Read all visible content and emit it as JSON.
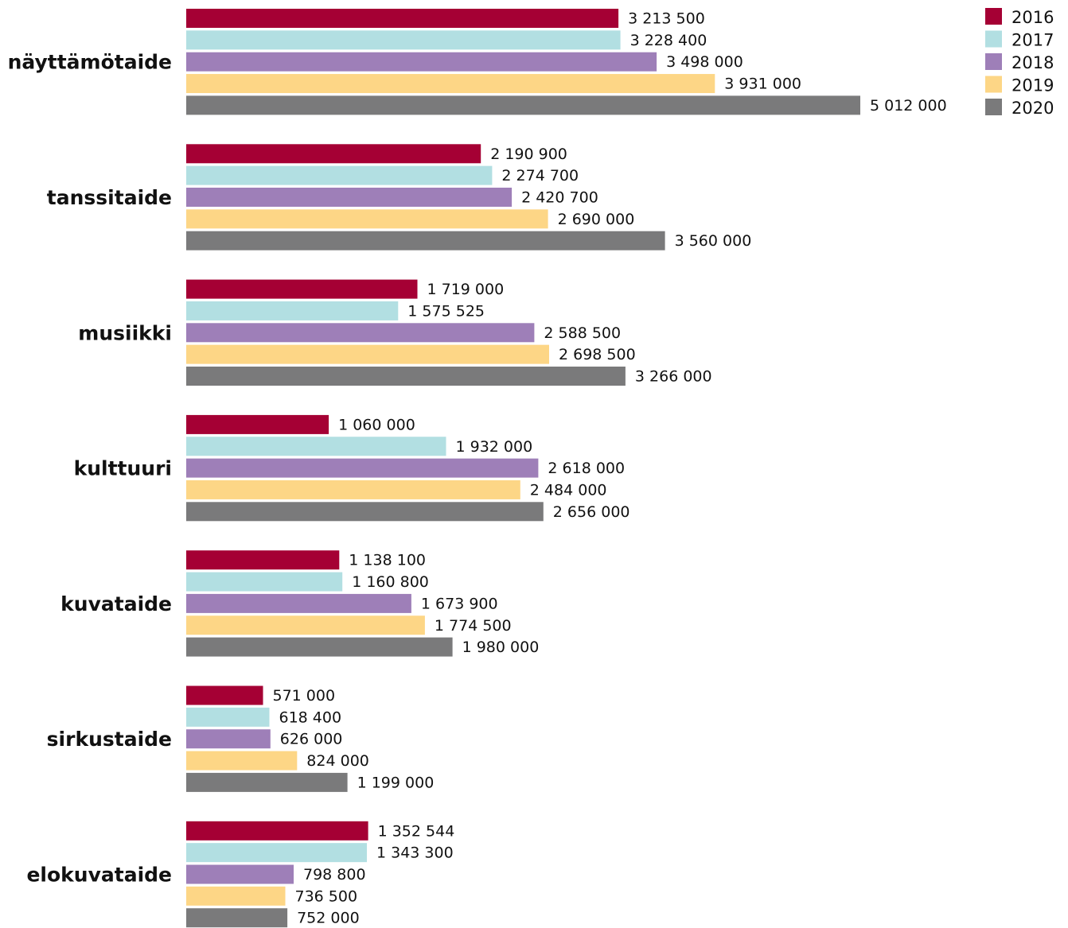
{
  "chart_data": {
    "type": "bar",
    "orientation": "horizontal",
    "categories": [
      "näyttämötaide",
      "tanssitaide",
      "musiikki",
      "kulttuuri",
      "kuvataide",
      "sirkustaide",
      "elokuvataide"
    ],
    "series": [
      {
        "name": "2016",
        "color": "#a50034",
        "values": [
          3213500,
          2190900,
          1719000,
          1060000,
          1138100,
          571000,
          1352544
        ],
        "labels": [
          "3 213 500",
          "2 190 900",
          "1 719 000",
          "1 060 000",
          "1 138 100",
          "571 000",
          "1 352 544"
        ]
      },
      {
        "name": "2017",
        "color": "#b2dfe2",
        "values": [
          3228400,
          2274700,
          1575525,
          1932000,
          1160800,
          618400,
          1343300
        ],
        "labels": [
          "3 228 400",
          "2 274 700",
          "1 575 525",
          "1 932 000",
          "1 160 800",
          "618 400",
          "1 343 300"
        ]
      },
      {
        "name": "2018",
        "color": "#9e7fb8",
        "values": [
          3498000,
          2420700,
          2588500,
          2618000,
          1673900,
          626000,
          798800
        ],
        "labels": [
          "3 498 000",
          "2 420 700",
          "2 588 500",
          "2 618 000",
          "1 673 900",
          "626 000",
          "798 800"
        ]
      },
      {
        "name": "2019",
        "color": "#fdd686",
        "values": [
          3931000,
          2690000,
          2698500,
          2484000,
          1774500,
          824000,
          736500
        ],
        "labels": [
          "3 931 000",
          "2 690 000",
          "2 698 500",
          "2 484 000",
          "1 774 500",
          "824 000",
          "736 500"
        ]
      },
      {
        "name": "2020",
        "color": "#7a7a7b",
        "values": [
          5012000,
          3560000,
          3266000,
          2656000,
          1980000,
          1199000,
          752000
        ],
        "labels": [
          "5 012 000",
          "3 560 000",
          "3 266 000",
          "2 656 000",
          "1 980 000",
          "1 199 000",
          "752 000"
        ]
      }
    ],
    "title": "",
    "xlabel": "",
    "ylabel": "",
    "xlim": [
      0,
      5012000
    ],
    "grid": false,
    "legend_position": "top-right"
  }
}
